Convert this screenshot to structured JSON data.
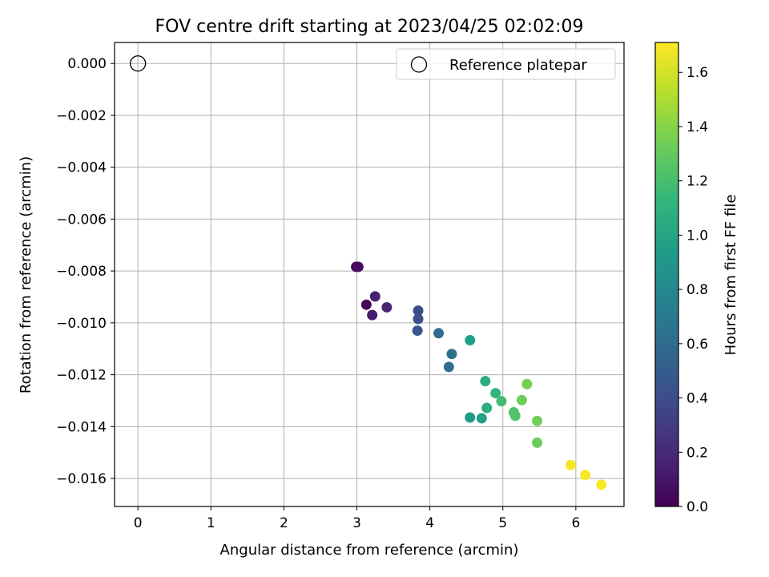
{
  "chart_data": {
    "type": "scatter",
    "title": "FOV centre drift starting at 2023/04/25 02:02:09",
    "xlabel": "Angular distance from reference (arcmin)",
    "ylabel": "Rotation from reference (arcmin)",
    "xlim": [
      -0.32,
      6.66
    ],
    "ylim": [
      -0.01708,
      0.00081
    ],
    "xticks": [
      0,
      1,
      2,
      3,
      4,
      5,
      6
    ],
    "yticks": [
      0.0,
      -0.002,
      -0.004,
      -0.006,
      -0.008,
      -0.01,
      -0.012,
      -0.014,
      -0.016
    ],
    "xtick_labels": [
      "0",
      "1",
      "2",
      "3",
      "4",
      "5",
      "6"
    ],
    "ytick_labels": [
      "0.000",
      "−0.002",
      "−0.004",
      "−0.006",
      "−0.008",
      "−0.010",
      "−0.012",
      "−0.014",
      "−0.016"
    ],
    "grid": true,
    "legend": {
      "position": "top-right",
      "entries": [
        "Reference platepar"
      ]
    },
    "reference": {
      "name": "Reference platepar",
      "x": 0,
      "y": 0
    },
    "colorbar": {
      "label": "Hours from first FF file",
      "colormap": "viridis",
      "range": [
        0.0,
        1.71
      ],
      "ticks": [
        0.0,
        0.2,
        0.4,
        0.6,
        0.8,
        1.0,
        1.2,
        1.4,
        1.6
      ],
      "tick_labels": [
        "0.0",
        "0.2",
        "0.4",
        "0.6",
        "0.8",
        "1.0",
        "1.2",
        "1.4",
        "1.6"
      ]
    },
    "points": [
      {
        "x": 2.99,
        "y": -0.00784,
        "c": 0.03
      },
      {
        "x": 3.02,
        "y": -0.00784,
        "c": 0.05
      },
      {
        "x": 3.13,
        "y": -0.0093,
        "c": 0.02
      },
      {
        "x": 3.21,
        "y": -0.0097,
        "c": 0.12
      },
      {
        "x": 3.25,
        "y": -0.00898,
        "c": 0.15
      },
      {
        "x": 3.41,
        "y": -0.0094,
        "c": 0.18
      },
      {
        "x": 3.84,
        "y": -0.00953,
        "c": 0.4
      },
      {
        "x": 3.84,
        "y": -0.00985,
        "c": 0.42
      },
      {
        "x": 3.83,
        "y": -0.0103,
        "c": 0.45
      },
      {
        "x": 4.12,
        "y": -0.0104,
        "c": 0.6
      },
      {
        "x": 4.3,
        "y": -0.0112,
        "c": 0.63
      },
      {
        "x": 4.26,
        "y": -0.0117,
        "c": 0.61
      },
      {
        "x": 4.55,
        "y": -0.01067,
        "c": 0.95
      },
      {
        "x": 4.55,
        "y": -0.01365,
        "c": 0.92
      },
      {
        "x": 4.71,
        "y": -0.01368,
        "c": 0.97
      },
      {
        "x": 4.76,
        "y": -0.01225,
        "c": 1.05
      },
      {
        "x": 4.78,
        "y": -0.01328,
        "c": 1.07
      },
      {
        "x": 4.9,
        "y": -0.01271,
        "c": 1.12
      },
      {
        "x": 4.98,
        "y": -0.01302,
        "c": 1.18
      },
      {
        "x": 5.15,
        "y": -0.01345,
        "c": 1.22
      },
      {
        "x": 5.17,
        "y": -0.01358,
        "c": 1.24
      },
      {
        "x": 5.26,
        "y": -0.01298,
        "c": 1.33
      },
      {
        "x": 5.33,
        "y": -0.01236,
        "c": 1.35
      },
      {
        "x": 5.47,
        "y": -0.01378,
        "c": 1.34
      },
      {
        "x": 5.47,
        "y": -0.01462,
        "c": 1.32
      },
      {
        "x": 5.93,
        "y": -0.01548,
        "c": 1.69
      },
      {
        "x": 6.13,
        "y": -0.01587,
        "c": 1.7
      },
      {
        "x": 6.35,
        "y": -0.01624,
        "c": 1.7
      }
    ]
  }
}
